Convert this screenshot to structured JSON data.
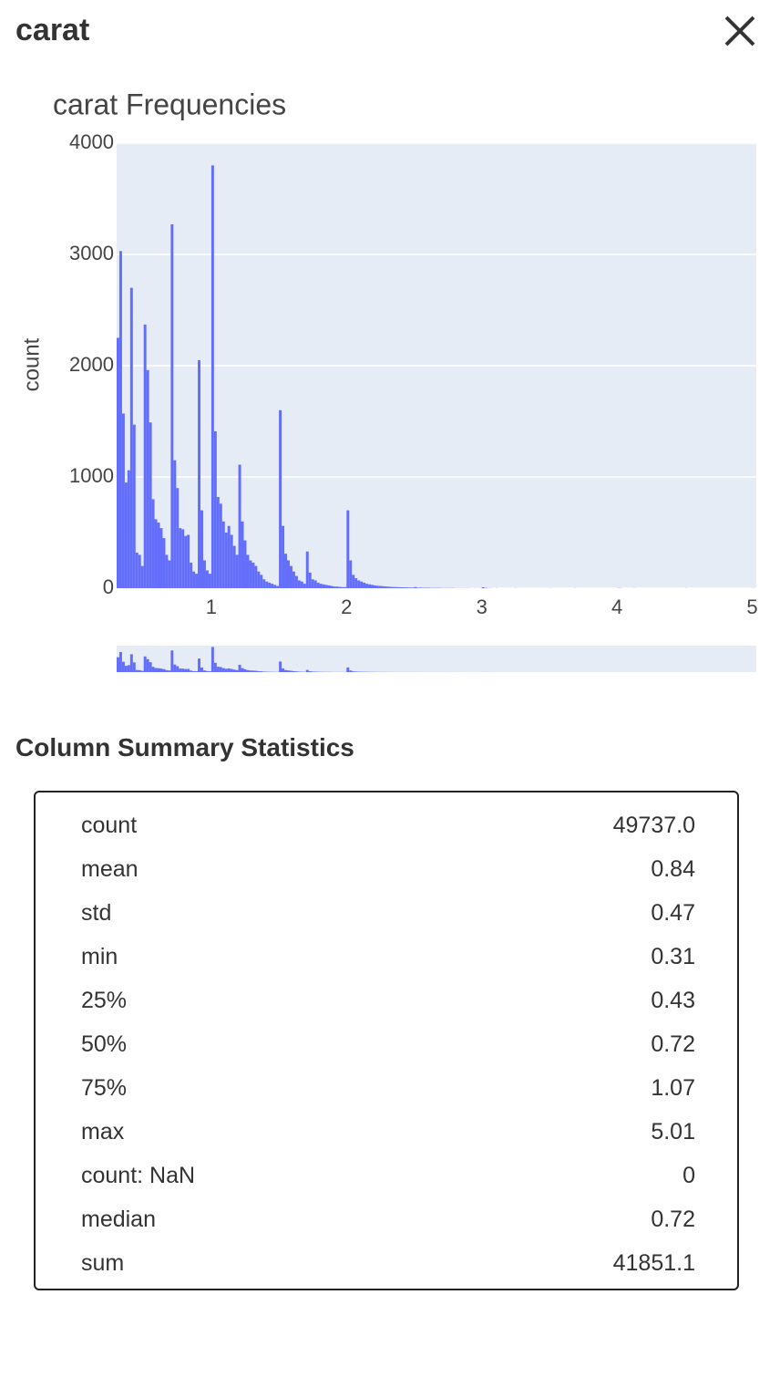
{
  "header": {
    "title": "carat"
  },
  "chart_data": {
    "type": "histogram",
    "title": "carat Frequencies",
    "y_label": "count",
    "color": "#636efa",
    "grid": true,
    "xlim": [
      0.3,
      5.03
    ],
    "xticks": [
      1,
      2,
      3,
      4,
      5
    ],
    "ylim": [
      0,
      4000
    ],
    "yticks": [
      0,
      1000,
      2000,
      3000,
      4000
    ],
    "bins": [
      0.3,
      0.32,
      0.34,
      0.36,
      0.38,
      0.4,
      0.42,
      0.44,
      0.46,
      0.48,
      0.5,
      0.52,
      0.54,
      0.56,
      0.58,
      0.6,
      0.62,
      0.64,
      0.66,
      0.68,
      0.7,
      0.72,
      0.74,
      0.76,
      0.78,
      0.8,
      0.82,
      0.84,
      0.86,
      0.88,
      0.9,
      0.92,
      0.94,
      0.96,
      0.98,
      1,
      1.02,
      1.04,
      1.06,
      1.08,
      1.1,
      1.12,
      1.14,
      1.16,
      1.18,
      1.2,
      1.22,
      1.24,
      1.26,
      1.28,
      1.3,
      1.32,
      1.34,
      1.36,
      1.38,
      1.4,
      1.42,
      1.44,
      1.46,
      1.48,
      1.5,
      1.52,
      1.54,
      1.56,
      1.58,
      1.6,
      1.62,
      1.64,
      1.66,
      1.68,
      1.7,
      1.72,
      1.74,
      1.76,
      1.78,
      1.8,
      1.82,
      1.84,
      1.86,
      1.88,
      1.9,
      1.92,
      1.94,
      1.96,
      1.98,
      2,
      2.02,
      2.04,
      2.06,
      2.08,
      2.1,
      2.12,
      2.14,
      2.16,
      2.18,
      2.2,
      2.22,
      2.24,
      2.26,
      2.28,
      2.3,
      2.32,
      2.34,
      2.36,
      2.38,
      2.4,
      2.42,
      2.44,
      2.46,
      2.48,
      2.5,
      2.52,
      2.54,
      2.56,
      2.58,
      2.6,
      2.62,
      2.64,
      2.66,
      2.68,
      2.7,
      2.72,
      2.74,
      2.76,
      2.78,
      2.8,
      2.82,
      2.84,
      2.86,
      2.88,
      2.9,
      2.92,
      2.94,
      2.96,
      2.98,
      3,
      3.02,
      3.04,
      3.06,
      3.08,
      3.1,
      3.12,
      3.14,
      3.16,
      3.18,
      3.2,
      3.22,
      3.24,
      3.26,
      3.28,
      3.3,
      3.32,
      3.34,
      3.36,
      3.38,
      3.4,
      3.42,
      3.44,
      3.46,
      3.48,
      3.5,
      3.52,
      3.54,
      3.56,
      3.58,
      3.6,
      3.62,
      3.64,
      3.66,
      3.68,
      3.7,
      3.72,
      3.74,
      3.76,
      3.78,
      3.8,
      3.82,
      3.84,
      3.86,
      3.88,
      3.9,
      3.92,
      3.94,
      3.96,
      3.98,
      4,
      4.02,
      4.04,
      4.06,
      4.08,
      4.1,
      4.12,
      4.14,
      4.16,
      4.18,
      4.2,
      4.22,
      4.24,
      4.26,
      4.28,
      4.3,
      4.32,
      4.34,
      4.36,
      4.38,
      4.4,
      4.42,
      4.44,
      4.46,
      4.48,
      4.5,
      4.52,
      4.54,
      4.56,
      4.58,
      4.6,
      4.62,
      4.64,
      4.66,
      4.68,
      4.7,
      4.72,
      4.74,
      4.76,
      4.78,
      4.8,
      4.82,
      4.84,
      4.86,
      4.88,
      4.9,
      4.92,
      4.94,
      4.96,
      4.98,
      5,
      5.02
    ],
    "values": [
      2250,
      3030,
      1570,
      950,
      1060,
      2700,
      1470,
      320,
      300,
      200,
      2370,
      1960,
      1490,
      800,
      620,
      590,
      540,
      450,
      300,
      250,
      3270,
      1150,
      900,
      540,
      530,
      470,
      480,
      230,
      150,
      130,
      2050,
      700,
      250,
      160,
      130,
      3800,
      1410,
      820,
      760,
      600,
      500,
      560,
      480,
      380,
      300,
      1110,
      600,
      430,
      300,
      250,
      230,
      200,
      150,
      120,
      80,
      60,
      50,
      40,
      30,
      20,
      1600,
      560,
      310,
      250,
      200,
      150,
      110,
      70,
      60,
      40,
      330,
      140,
      80,
      70,
      50,
      40,
      35,
      30,
      25,
      20,
      15,
      15,
      12,
      10,
      10,
      700,
      250,
      120,
      90,
      70,
      60,
      50,
      40,
      35,
      30,
      25,
      22,
      20,
      18,
      16,
      14,
      12,
      11,
      10,
      9,
      8,
      8,
      7,
      6,
      6,
      10,
      5,
      5,
      4,
      4,
      4,
      3,
      3,
      3,
      3,
      2,
      2,
      2,
      2,
      2,
      1,
      1,
      1,
      1,
      1,
      1,
      0,
      1,
      0,
      1,
      8,
      3,
      1,
      1,
      0,
      1,
      0,
      0,
      0,
      0,
      0,
      0,
      1,
      0,
      0,
      0,
      0,
      0,
      0,
      0,
      0,
      0,
      0,
      0,
      0,
      1,
      0,
      0,
      0,
      0,
      0,
      0,
      0,
      0,
      1,
      0,
      0,
      0,
      0,
      0,
      0,
      0,
      0,
      0,
      0,
      0,
      0,
      0,
      0,
      0,
      2,
      1,
      0,
      0,
      0,
      0,
      1,
      0,
      0,
      0,
      0,
      0,
      0,
      0,
      0,
      0,
      0,
      0,
      0,
      0,
      0,
      0,
      0,
      0,
      0,
      1,
      0,
      0,
      0,
      0,
      0,
      0,
      0,
      0,
      0,
      0,
      0,
      0,
      0,
      0,
      0,
      0,
      0,
      0,
      0,
      0,
      0,
      0,
      0,
      0,
      1
    ]
  },
  "summary": {
    "title": "Column Summary Statistics",
    "rows": [
      [
        "count",
        "49737.0"
      ],
      [
        "mean",
        "0.84"
      ],
      [
        "std",
        "0.47"
      ],
      [
        "min",
        "0.31"
      ],
      [
        "25%",
        "0.43"
      ],
      [
        "50%",
        "0.72"
      ],
      [
        "75%",
        "1.07"
      ],
      [
        "max",
        "5.01"
      ],
      [
        "count: NaN",
        "0"
      ],
      [
        "median",
        "0.72"
      ],
      [
        "sum",
        "41851.1"
      ]
    ]
  }
}
